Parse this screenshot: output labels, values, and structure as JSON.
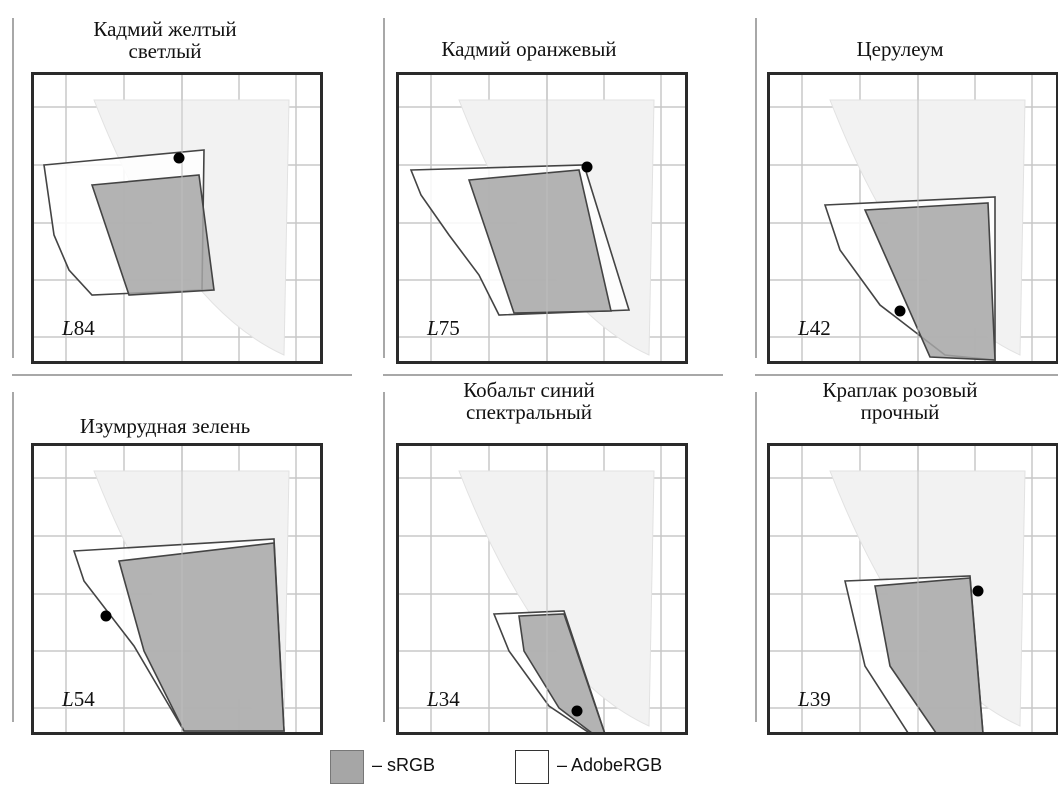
{
  "panels": [
    {
      "title_lines": [
        "Кадмий желтый",
        "светлый"
      ],
      "lum_letter": "L",
      "lum_value": "84",
      "adobe_rgb": [
        [
          10,
          90
        ],
        [
          170,
          75
        ],
        [
          168,
          215
        ],
        [
          58,
          220
        ],
        [
          35,
          195
        ],
        [
          20,
          160
        ]
      ],
      "srgb": [
        [
          58,
          110
        ],
        [
          165,
          100
        ],
        [
          180,
          215
        ],
        [
          95,
          220
        ]
      ],
      "point": [
        145,
        83
      ]
    },
    {
      "title_lines": [
        "Кадмий оранжевый"
      ],
      "lum_letter": "L",
      "lum_value": "75",
      "adobe_rgb": [
        [
          12,
          95
        ],
        [
          185,
          90
        ],
        [
          230,
          235
        ],
        [
          100,
          240
        ],
        [
          80,
          200
        ],
        [
          50,
          160
        ],
        [
          22,
          120
        ]
      ],
      "srgb": [
        [
          70,
          105
        ],
        [
          180,
          95
        ],
        [
          212,
          236
        ],
        [
          115,
          238
        ]
      ],
      "point": [
        188,
        92
      ]
    },
    {
      "title_lines": [
        "Церулеум"
      ],
      "lum_letter": "L",
      "lum_value": "42",
      "adobe_rgb": [
        [
          55,
          130
        ],
        [
          225,
          122
        ],
        [
          225,
          285
        ],
        [
          175,
          280
        ],
        [
          110,
          230
        ],
        [
          70,
          175
        ]
      ],
      "srgb": [
        [
          95,
          135
        ],
        [
          218,
          128
        ],
        [
          225,
          285
        ],
        [
          160,
          282
        ]
      ],
      "point": [
        130,
        236
      ]
    },
    {
      "title_lines": [
        "Изумрудная зелень"
      ],
      "lum_letter": "L",
      "lum_value": "54",
      "adobe_rgb": [
        [
          40,
          105
        ],
        [
          240,
          93
        ],
        [
          250,
          285
        ],
        [
          150,
          285
        ],
        [
          100,
          200
        ],
        [
          50,
          135
        ]
      ],
      "srgb": [
        [
          85,
          115
        ],
        [
          240,
          97
        ],
        [
          250,
          285
        ],
        [
          150,
          285
        ],
        [
          110,
          205
        ]
      ],
      "point": [
        72,
        170
      ]
    },
    {
      "title_lines": [
        "Кобальт синий",
        "спектральный"
      ],
      "lum_letter": "L",
      "lum_value": "34",
      "adobe_rgb": [
        [
          95,
          168
        ],
        [
          165,
          165
        ],
        [
          210,
          300
        ],
        [
          150,
          260
        ],
        [
          110,
          205
        ]
      ],
      "srgb": [
        [
          120,
          170
        ],
        [
          165,
          168
        ],
        [
          210,
          300
        ],
        [
          160,
          262
        ],
        [
          125,
          205
        ]
      ],
      "point": [
        178,
        265
      ]
    },
    {
      "title_lines": [
        "Краплак розовый",
        "прочный"
      ],
      "lum_letter": "L",
      "lum_value": "39",
      "adobe_rgb": [
        [
          75,
          135
        ],
        [
          200,
          130
        ],
        [
          218,
          348
        ],
        [
          140,
          290
        ],
        [
          95,
          220
        ]
      ],
      "srgb": [
        [
          105,
          140
        ],
        [
          200,
          132
        ],
        [
          218,
          348
        ],
        [
          175,
          300
        ],
        [
          120,
          220
        ]
      ],
      "point": [
        208,
        145
      ]
    }
  ],
  "legend": {
    "srgb_label": "–  sRGB",
    "adobe_label": "– AdobeRGB",
    "srgb_color": "#a6a6a6",
    "adobe_color": "#ffffff"
  },
  "colors": {
    "frame": "#2a2a2a",
    "grid": "#c8c8c8",
    "outline": "#444444",
    "point": "#000000"
  }
}
